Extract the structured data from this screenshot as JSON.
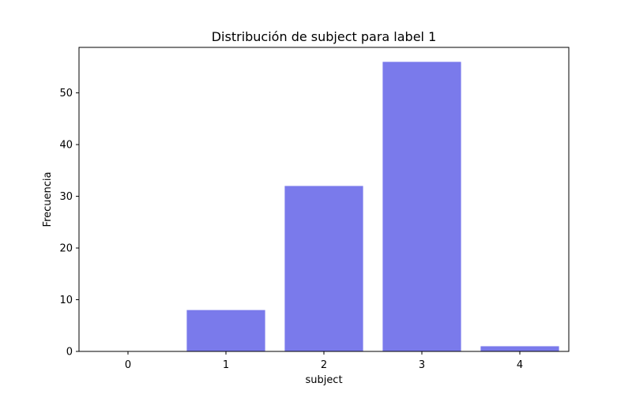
{
  "chart_data": {
    "type": "bar",
    "title": "Distribución de subject para label 1",
    "xlabel": "subject",
    "ylabel": "Frecuencia",
    "categories": [
      "0",
      "1",
      "2",
      "3",
      "4"
    ],
    "values": [
      0,
      8,
      32,
      56,
      1
    ],
    "ylim": [
      0,
      58.8
    ],
    "yticks": [
      0,
      10,
      20,
      30,
      40,
      50
    ],
    "bar_color": "#7a7aeb",
    "grid": false,
    "legend": "none"
  }
}
